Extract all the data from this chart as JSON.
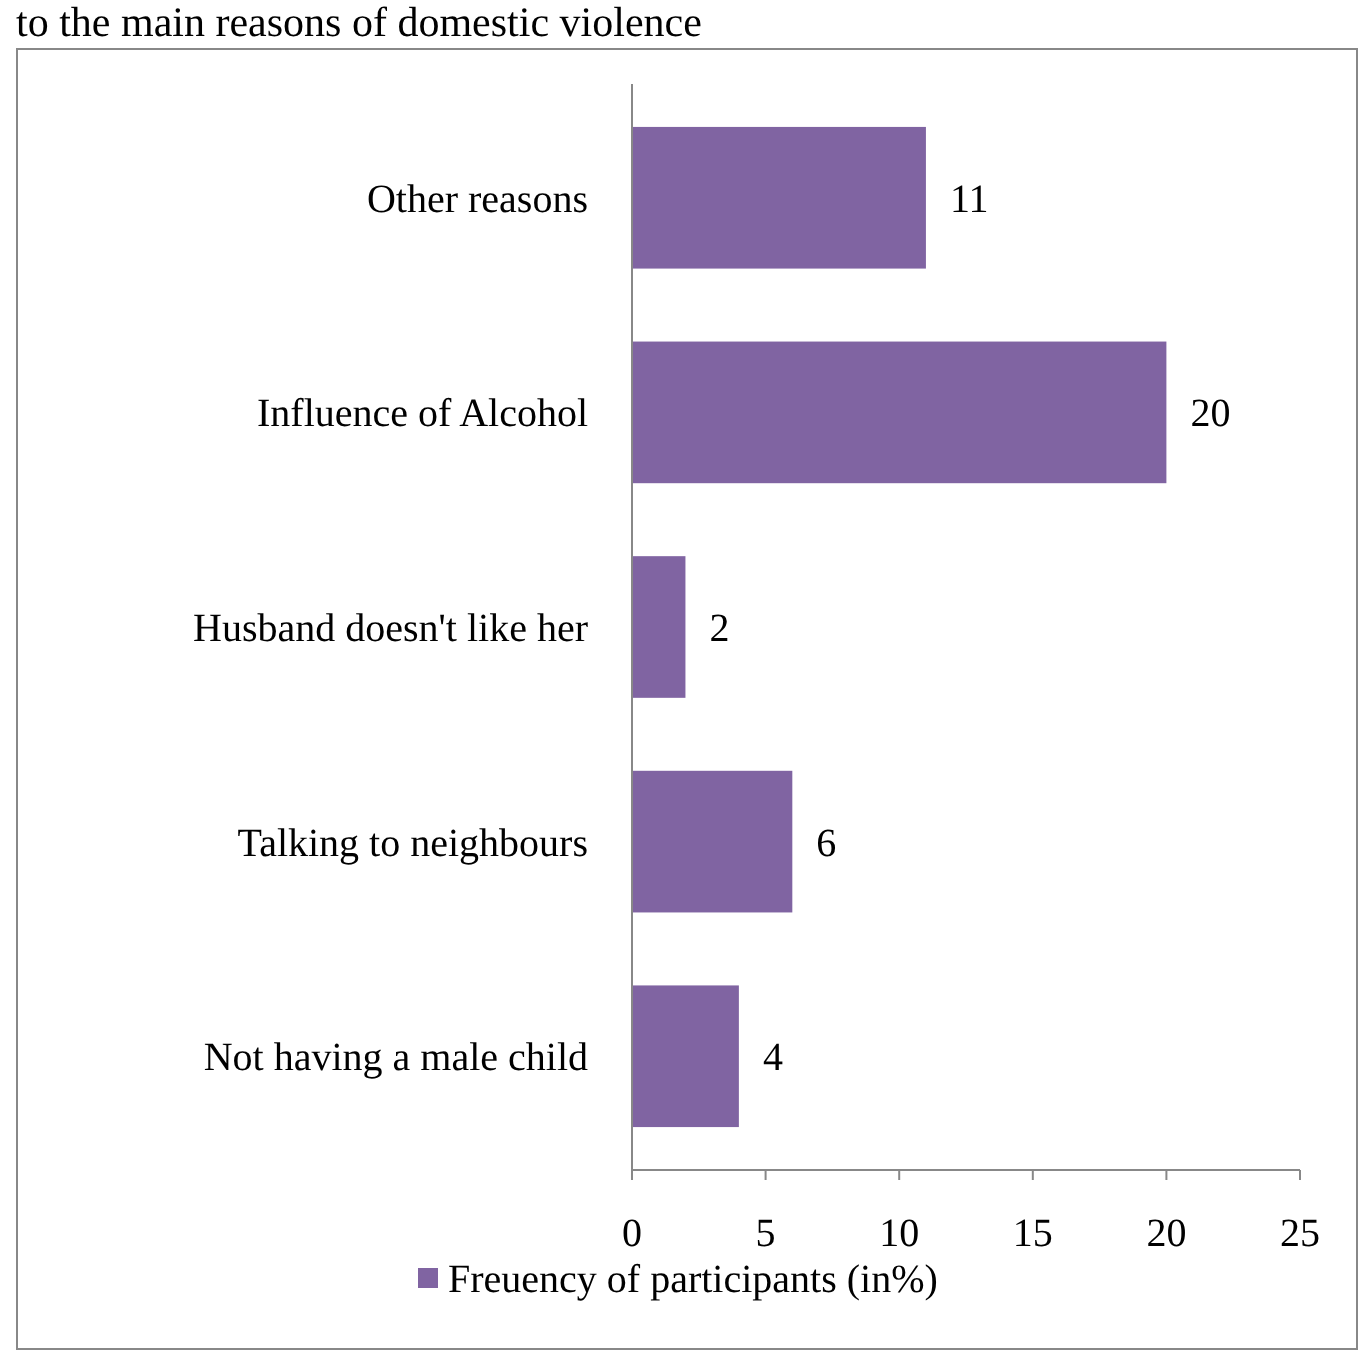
{
  "chart_data": {
    "type": "bar",
    "orientation": "horizontal",
    "title": "to the main reasons of domestic violence",
    "categories": [
      "Other reasons",
      "Influence of Alcohol",
      "Husband doesn't like her",
      "Talking to neighbours",
      "Not having a male child"
    ],
    "series": [
      {
        "name": "Freuency of participants (in%)",
        "color": "#8064a2",
        "values": [
          11,
          20,
          2,
          6,
          4
        ]
      }
    ],
    "xlim": [
      0,
      25
    ],
    "xticks": [
      0,
      5,
      10,
      15,
      20,
      25
    ],
    "data_labels": true,
    "legend": "bottom",
    "grid": false
  }
}
